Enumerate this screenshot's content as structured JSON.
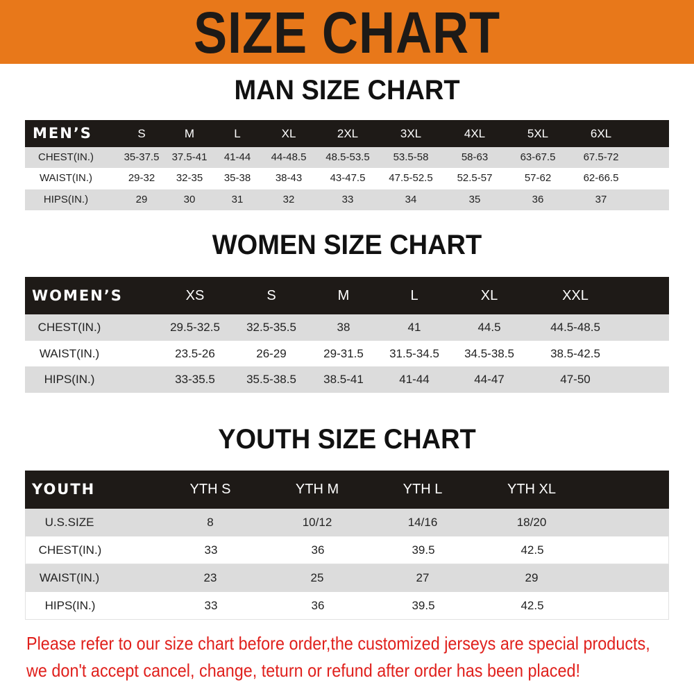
{
  "banner": {
    "title": "SIZE CHART",
    "color": "#E8781A"
  },
  "men": {
    "title": "MAN SIZE CHART",
    "header": [
      "MEN’S",
      "S",
      "M",
      "L",
      "XL",
      "2XL",
      "3XL",
      "4XL",
      "5XL",
      "6XL"
    ],
    "rows": [
      [
        "CHEST(IN.)",
        "35-37.5",
        "37.5-41",
        "41-44",
        "44-48.5",
        "48.5-53.5",
        "53.5-58",
        "58-63",
        "63-67.5",
        "67.5-72"
      ],
      [
        "WAIST(IN.)",
        "29-32",
        "32-35",
        "35-38",
        "38-43",
        "43-47.5",
        "47.5-52.5",
        "52.5-57",
        "57-62",
        "62-66.5"
      ],
      [
        "HIPS(IN.)",
        "29",
        "30",
        "31",
        "32",
        "33",
        "34",
        "35",
        "36",
        "37"
      ]
    ]
  },
  "women": {
    "title": "WOMEN SIZE CHART",
    "header": [
      "WOMEN’S",
      "XS",
      "S",
      "M",
      "L",
      "XL",
      "XXL"
    ],
    "rows": [
      [
        "CHEST(IN.)",
        "29.5-32.5",
        "32.5-35.5",
        "38",
        "41",
        "44.5",
        "44.5-48.5"
      ],
      [
        "WAIST(IN.)",
        "23.5-26",
        "26-29",
        "29-31.5",
        "31.5-34.5",
        "34.5-38.5",
        "38.5-42.5"
      ],
      [
        "HIPS(IN.)",
        "33-35.5",
        "35.5-38.5",
        "38.5-41",
        "41-44",
        "44-47",
        "47-50"
      ]
    ]
  },
  "youth": {
    "title": "YOUTH SIZE CHART",
    "header": [
      "YOUTH",
      "YTH S",
      "YTH M",
      "YTH L",
      "YTH XL"
    ],
    "rows": [
      [
        "U.S.SIZE",
        "8",
        "10/12",
        "14/16",
        "18/20"
      ],
      [
        "CHEST(IN.)",
        "33",
        "36",
        "39.5",
        "42.5"
      ],
      [
        "WAIST(IN.)",
        "23",
        "25",
        "27",
        "29"
      ],
      [
        "HIPS(IN.)",
        "33",
        "36",
        "39.5",
        "42.5"
      ]
    ]
  },
  "notice": {
    "line1": "Please refer to our size chart before order,the customized jerseys are special products,",
    "line2": "we don't accept cancel, change, teturn or refund after order has been placed!",
    "color": "#e0201c"
  }
}
